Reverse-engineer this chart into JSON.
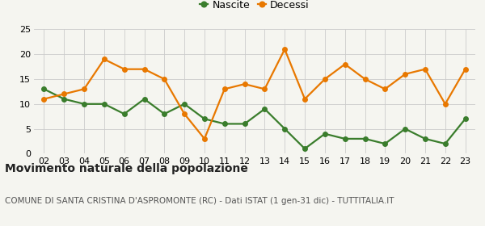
{
  "years": [
    "02",
    "03",
    "04",
    "05",
    "06",
    "07",
    "08",
    "09",
    "10",
    "11",
    "12",
    "13",
    "14",
    "15",
    "16",
    "17",
    "18",
    "19",
    "20",
    "21",
    "22",
    "23"
  ],
  "nascite": [
    13,
    11,
    10,
    10,
    8,
    11,
    8,
    10,
    7,
    6,
    6,
    9,
    5,
    1,
    4,
    3,
    3,
    2,
    5,
    3,
    2,
    7
  ],
  "decessi": [
    11,
    12,
    13,
    19,
    17,
    17,
    15,
    8,
    3,
    13,
    14,
    13,
    21,
    11,
    15,
    18,
    15,
    13,
    16,
    17,
    10,
    17
  ],
  "nascite_color": "#3a7d2c",
  "decessi_color": "#e87800",
  "background_color": "#f5f5f0",
  "title": "Movimento naturale della popolazione",
  "subtitle": "COMUNE DI SANTA CRISTINA D'ASPROMONTE (RC) - Dati ISTAT (1 gen-31 dic) - TUTTITALIA.IT",
  "legend_nascite": "Nascite",
  "legend_decessi": "Decessi",
  "ylim": [
    0,
    25
  ],
  "yticks": [
    0,
    5,
    10,
    15,
    20,
    25
  ],
  "grid_color": "#cccccc",
  "title_fontsize": 10,
  "subtitle_fontsize": 7.5,
  "legend_fontsize": 9,
  "tick_fontsize": 8,
  "marker_size": 4,
  "line_width": 1.6
}
